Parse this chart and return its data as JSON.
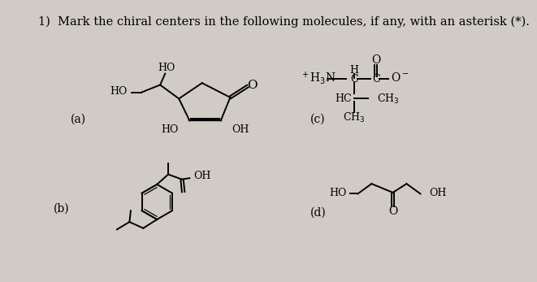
{
  "title": "1)  Mark the chiral centers in the following molecules, if any, with an asterisk (*).",
  "bg_color": "#d0cbc4",
  "title_fontsize": 10.5,
  "label_fontsize": 10,
  "mol_fontsize": 9
}
